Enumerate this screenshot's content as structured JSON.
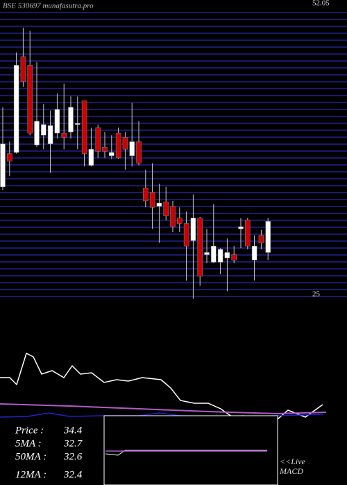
{
  "chart_data": {
    "type": "candlestick",
    "title": "BSE 530697 munafasutra.pro",
    "ylim": [
      25,
      52.05
    ],
    "yticks": [
      25,
      52.05
    ],
    "up_color": "#ffffff",
    "down_color": "#cc0000",
    "candles": [
      {
        "open": 35.0,
        "high": 42.4,
        "low": 34.7,
        "close": 39.0
      },
      {
        "open": 38.1,
        "high": 39.2,
        "low": 36.0,
        "close": 37.4
      },
      {
        "open": 38.2,
        "high": 47.5,
        "low": 38.1,
        "close": 46.3
      },
      {
        "open": 47.1,
        "high": 49.8,
        "low": 44.3,
        "close": 44.8
      },
      {
        "open": 46.3,
        "high": 49.5,
        "low": 39.8,
        "close": 40.0
      },
      {
        "open": 38.9,
        "high": 46.6,
        "low": 38.7,
        "close": 41.1
      },
      {
        "open": 39.8,
        "high": 42.7,
        "low": 38.5,
        "close": 40.8
      },
      {
        "open": 39.0,
        "high": 42.1,
        "low": 36.3,
        "close": 40.7
      },
      {
        "open": 40.0,
        "high": 43.7,
        "low": 39.5,
        "close": 42.2
      },
      {
        "open": 40.0,
        "high": 44.6,
        "low": 38.5,
        "close": 39.6
      },
      {
        "open": 40.1,
        "high": 43.4,
        "low": 39.5,
        "close": 42.4
      },
      {
        "open": 40.8,
        "high": 43.4,
        "low": 38.5,
        "close": 40.9
      },
      {
        "open": 43.0,
        "high": 43.0,
        "low": 36.9,
        "close": 38.1
      },
      {
        "open": 37.0,
        "high": 40.5,
        "low": 36.9,
        "close": 38.5
      },
      {
        "open": 40.5,
        "high": 40.8,
        "low": 37.7,
        "close": 38.3
      },
      {
        "open": 38.7,
        "high": 40.1,
        "low": 37.7,
        "close": 38.3
      },
      {
        "open": 37.9,
        "high": 39.8,
        "low": 37.6,
        "close": 38.2
      },
      {
        "open": 40.0,
        "high": 40.5,
        "low": 37.6,
        "close": 37.7
      },
      {
        "open": 39.6,
        "high": 40.1,
        "low": 36.6,
        "close": 38.5
      },
      {
        "open": 37.9,
        "high": 42.8,
        "low": 36.9,
        "close": 39.2
      },
      {
        "open": 39.2,
        "high": 41.1,
        "low": 37.0,
        "close": 37.2
      },
      {
        "open": 34.9,
        "high": 36.6,
        "low": 33.1,
        "close": 33.7
      },
      {
        "open": 34.5,
        "high": 37.2,
        "low": 31.1,
        "close": 33.1
      },
      {
        "open": 33.2,
        "high": 35.3,
        "low": 29.8,
        "close": 33.5
      },
      {
        "open": 33.6,
        "high": 35.0,
        "low": 31.9,
        "close": 32.3
      },
      {
        "open": 33.2,
        "high": 33.7,
        "low": 30.8,
        "close": 31.3
      },
      {
        "open": 32.1,
        "high": 33.1,
        "low": 30.8,
        "close": 31.6
      },
      {
        "open": 31.6,
        "high": 32.7,
        "low": 26.3,
        "close": 29.5
      },
      {
        "open": 30.0,
        "high": 34.3,
        "low": 24.6,
        "close": 32.1
      },
      {
        "open": 32.1,
        "high": 32.2,
        "low": 25.8,
        "close": 26.7
      },
      {
        "open": 28.7,
        "high": 31.1,
        "low": 27.9,
        "close": 28.9
      },
      {
        "open": 28.0,
        "high": 33.4,
        "low": 27.9,
        "close": 29.5
      },
      {
        "open": 28.0,
        "high": 29.3,
        "low": 26.9,
        "close": 29.2
      },
      {
        "open": 28.4,
        "high": 30.2,
        "low": 25.3,
        "close": 28.9
      },
      {
        "open": 28.7,
        "high": 29.5,
        "low": 27.9,
        "close": 28.2
      },
      {
        "open": 31.1,
        "high": 32.1,
        "low": 29.3,
        "close": 31.3
      },
      {
        "open": 31.9,
        "high": 32.1,
        "low": 29.2,
        "close": 29.5
      },
      {
        "open": 28.2,
        "high": 30.5,
        "low": 26.3,
        "close": 29.5
      },
      {
        "open": 30.5,
        "high": 31.0,
        "low": 29.2,
        "close": 29.8
      },
      {
        "open": 28.9,
        "high": 32.1,
        "low": 28.2,
        "close": 31.8
      }
    ],
    "indicators": [
      {
        "label": "Price  :",
        "value": 34.4
      },
      {
        "label": "5MA :",
        "value": 32.7
      },
      {
        "label": "50MA :",
        "value": 32.6
      },
      {
        "label": "12MA :",
        "value": 32.4
      }
    ],
    "live_label": "<<Live",
    "macd_label": "MACD"
  }
}
